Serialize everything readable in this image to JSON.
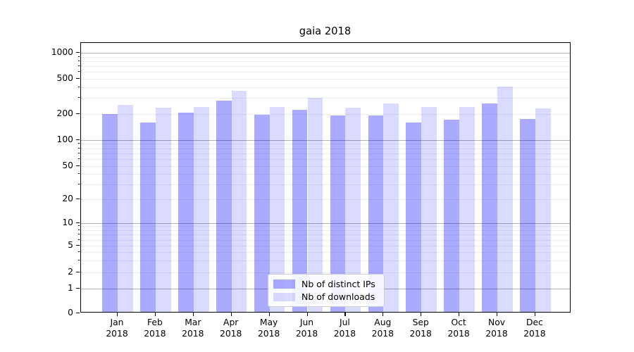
{
  "title": "gaia 2018",
  "legend": {
    "items": [
      {
        "label": "Nb of distinct IPs",
        "color": "rgba(0,0,255,0.335)"
      },
      {
        "label": "Nb of downloads",
        "color": "rgba(0,0,255,0.14)"
      }
    ]
  },
  "y_axis": {
    "tick_labels": [
      "0",
      "1",
      "2",
      "5",
      "10",
      "20",
      "50",
      "100",
      "200",
      "500",
      "1000"
    ]
  },
  "x_axis": {
    "ticks": [
      {
        "month": "Jan",
        "year": "2018"
      },
      {
        "month": "Feb",
        "year": "2018"
      },
      {
        "month": "Mar",
        "year": "2018"
      },
      {
        "month": "Apr",
        "year": "2018"
      },
      {
        "month": "May",
        "year": "2018"
      },
      {
        "month": "Jun",
        "year": "2018"
      },
      {
        "month": "Jul",
        "year": "2018"
      },
      {
        "month": "Aug",
        "year": "2018"
      },
      {
        "month": "Sep",
        "year": "2018"
      },
      {
        "month": "Oct",
        "year": "2018"
      },
      {
        "month": "Nov",
        "year": "2018"
      },
      {
        "month": "Dec",
        "year": "2018"
      }
    ]
  },
  "colors": {
    "ips_bar": "rgba(0,0,255,0.335)",
    "downloads_bar": "rgba(0,0,255,0.14)",
    "grid_minor": "#ededed",
    "grid_major": "#b2b2b2",
    "axis": "#000000"
  },
  "chart_data": {
    "type": "bar",
    "title": "gaia 2018",
    "categories": [
      "Jan 2018",
      "Feb 2018",
      "Mar 2018",
      "Apr 2018",
      "May 2018",
      "Jun 2018",
      "Jul 2018",
      "Aug 2018",
      "Sep 2018",
      "Oct 2018",
      "Nov 2018",
      "Dec 2018"
    ],
    "series": [
      {
        "name": "Nb of distinct IPs",
        "color": "rgba(0,0,255,0.335)",
        "values": [
          192,
          153,
          200,
          270,
          189,
          212,
          184,
          183,
          154,
          165,
          250,
          167
        ]
      },
      {
        "name": "Nb of downloads",
        "color": "rgba(0,0,255,0.14)",
        "values": [
          241,
          224,
          229,
          350,
          231,
          292,
          224,
          251,
          228,
          231,
          394,
          220
        ]
      }
    ],
    "xlabel": "",
    "ylabel": "",
    "yscale": "symlog",
    "yticks": [
      0,
      1,
      2,
      5,
      10,
      20,
      50,
      100,
      200,
      500,
      1000
    ],
    "ylim": [
      0,
      1150
    ],
    "grid": true,
    "legend_position": "lower center inside axes"
  }
}
